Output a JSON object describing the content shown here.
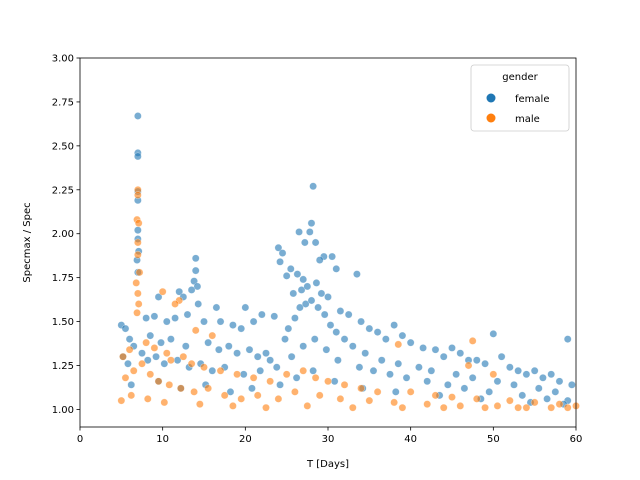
{
  "chart_data": {
    "type": "scatter",
    "title": "",
    "xlabel": "T [Days]",
    "ylabel": "Specmax / Spec",
    "xlim": [
      0,
      60
    ],
    "ylim": [
      0.9,
      3.0
    ],
    "xticks": [
      "0",
      "10",
      "20",
      "30",
      "40",
      "50",
      "60"
    ],
    "yticks": [
      "1.00",
      "1.25",
      "1.50",
      "1.75",
      "2.00",
      "2.25",
      "2.50",
      "2.75",
      "3.00"
    ],
    "grid": false,
    "legend": {
      "title": "gender",
      "placement": "top-right",
      "entries": [
        "female",
        "male"
      ]
    },
    "series": [
      {
        "name": "female",
        "color": "#1f77b4",
        "points": [
          [
            7.0,
            2.67
          ],
          [
            7.0,
            2.46
          ],
          [
            7.0,
            2.44
          ],
          [
            7.0,
            2.24
          ],
          [
            7.0,
            2.19
          ],
          [
            7.0,
            2.02
          ],
          [
            7.0,
            1.97
          ],
          [
            7.1,
            1.9
          ],
          [
            6.9,
            1.85
          ],
          [
            7.0,
            1.78
          ],
          [
            28.2,
            2.27
          ],
          [
            28.0,
            2.06
          ],
          [
            27.8,
            2.01
          ],
          [
            26.5,
            2.01
          ],
          [
            28.5,
            1.95
          ],
          [
            29.5,
            1.87
          ],
          [
            30.5,
            1.87
          ],
          [
            27.2,
            1.95
          ],
          [
            24.0,
            1.92
          ],
          [
            24.5,
            1.89
          ],
          [
            29.0,
            1.85
          ],
          [
            33.5,
            1.77
          ],
          [
            31.0,
            1.8
          ],
          [
            25.5,
            1.8
          ],
          [
            26.3,
            1.77
          ],
          [
            25.0,
            1.76
          ],
          [
            24.2,
            1.84
          ],
          [
            27.0,
            1.74
          ],
          [
            28.6,
            1.72
          ],
          [
            14.0,
            1.86
          ],
          [
            14.0,
            1.79
          ],
          [
            13.8,
            1.73
          ],
          [
            14.2,
            1.7
          ],
          [
            13.5,
            1.68
          ],
          [
            12.0,
            1.67
          ],
          [
            12.5,
            1.64
          ],
          [
            9.5,
            1.64
          ],
          [
            14.3,
            1.6
          ],
          [
            16.5,
            1.58
          ],
          [
            20.0,
            1.58
          ],
          [
            22.0,
            1.54
          ],
          [
            23.5,
            1.53
          ],
          [
            38.0,
            1.48
          ],
          [
            36.0,
            1.44
          ],
          [
            50.0,
            1.43
          ],
          [
            59.0,
            1.4
          ],
          [
            45.0,
            1.35
          ],
          [
            41.5,
            1.35
          ],
          [
            51.0,
            1.3
          ],
          [
            47.0,
            1.28
          ],
          [
            55.0,
            1.22
          ],
          [
            57.0,
            1.2
          ],
          [
            5.0,
            1.48
          ],
          [
            5.5,
            1.46
          ],
          [
            8.0,
            1.52
          ],
          [
            9.0,
            1.53
          ],
          [
            10.5,
            1.5
          ],
          [
            11.5,
            1.52
          ],
          [
            13.0,
            1.54
          ],
          [
            15.0,
            1.5
          ],
          [
            17.0,
            1.5
          ],
          [
            18.5,
            1.48
          ],
          [
            19.5,
            1.46
          ],
          [
            21.0,
            1.5
          ],
          [
            25.8,
            1.66
          ],
          [
            26.8,
            1.68
          ],
          [
            27.5,
            1.7
          ],
          [
            29.2,
            1.66
          ],
          [
            30.0,
            1.64
          ],
          [
            31.5,
            1.56
          ],
          [
            32.5,
            1.54
          ],
          [
            34.0,
            1.5
          ],
          [
            35.0,
            1.46
          ],
          [
            37.0,
            1.4
          ],
          [
            39.0,
            1.42
          ],
          [
            40.0,
            1.38
          ],
          [
            43.0,
            1.34
          ],
          [
            44.0,
            1.3
          ],
          [
            46.0,
            1.32
          ],
          [
            48.0,
            1.28
          ],
          [
            49.0,
            1.26
          ],
          [
            52.0,
            1.24
          ],
          [
            53.0,
            1.22
          ],
          [
            54.0,
            1.2
          ],
          [
            56.0,
            1.18
          ],
          [
            58.0,
            1.16
          ],
          [
            59.5,
            1.14
          ],
          [
            6.0,
            1.4
          ],
          [
            6.5,
            1.36
          ],
          [
            8.5,
            1.42
          ],
          [
            9.8,
            1.38
          ],
          [
            11.0,
            1.4
          ],
          [
            12.8,
            1.36
          ],
          [
            15.5,
            1.38
          ],
          [
            16.8,
            1.34
          ],
          [
            18.0,
            1.36
          ],
          [
            19.0,
            1.32
          ],
          [
            20.5,
            1.34
          ],
          [
            21.5,
            1.3
          ],
          [
            22.5,
            1.32
          ],
          [
            23.0,
            1.28
          ],
          [
            24.8,
            1.4
          ],
          [
            25.2,
            1.46
          ],
          [
            26.0,
            1.52
          ],
          [
            26.6,
            1.58
          ],
          [
            27.3,
            1.6
          ],
          [
            28.0,
            1.62
          ],
          [
            28.8,
            1.58
          ],
          [
            29.6,
            1.54
          ],
          [
            30.3,
            1.48
          ],
          [
            31.0,
            1.44
          ],
          [
            32.0,
            1.4
          ],
          [
            33.0,
            1.36
          ],
          [
            34.5,
            1.32
          ],
          [
            36.5,
            1.28
          ],
          [
            38.5,
            1.26
          ],
          [
            41.0,
            1.24
          ],
          [
            42.5,
            1.22
          ],
          [
            45.5,
            1.2
          ],
          [
            47.5,
            1.18
          ],
          [
            50.5,
            1.16
          ],
          [
            52.5,
            1.14
          ],
          [
            55.5,
            1.12
          ],
          [
            57.5,
            1.1
          ],
          [
            5.2,
            1.3
          ],
          [
            5.8,
            1.26
          ],
          [
            7.5,
            1.32
          ],
          [
            8.2,
            1.28
          ],
          [
            9.2,
            1.3
          ],
          [
            10.2,
            1.26
          ],
          [
            11.8,
            1.28
          ],
          [
            13.2,
            1.24
          ],
          [
            14.6,
            1.26
          ],
          [
            16.0,
            1.22
          ],
          [
            17.5,
            1.24
          ],
          [
            19.8,
            1.2
          ],
          [
            21.8,
            1.22
          ],
          [
            23.8,
            1.24
          ],
          [
            25.6,
            1.3
          ],
          [
            27.0,
            1.36
          ],
          [
            28.4,
            1.4
          ],
          [
            29.8,
            1.34
          ],
          [
            31.2,
            1.28
          ],
          [
            33.8,
            1.24
          ],
          [
            35.5,
            1.22
          ],
          [
            37.5,
            1.2
          ],
          [
            39.5,
            1.18
          ],
          [
            42.0,
            1.16
          ],
          [
            44.5,
            1.14
          ],
          [
            46.5,
            1.12
          ],
          [
            49.5,
            1.1
          ],
          [
            53.5,
            1.08
          ],
          [
            56.5,
            1.06
          ],
          [
            59.0,
            1.05
          ],
          [
            6.2,
            1.14
          ],
          [
            9.5,
            1.16
          ],
          [
            12.2,
            1.12
          ],
          [
            15.2,
            1.14
          ],
          [
            18.2,
            1.1
          ],
          [
            20.8,
            1.12
          ],
          [
            24.2,
            1.14
          ],
          [
            26.2,
            1.18
          ],
          [
            28.2,
            1.22
          ],
          [
            30.8,
            1.16
          ],
          [
            34.2,
            1.12
          ],
          [
            38.2,
            1.1
          ],
          [
            43.5,
            1.08
          ],
          [
            48.5,
            1.06
          ],
          [
            54.5,
            1.04
          ],
          [
            58.5,
            1.03
          ]
        ]
      },
      {
        "name": "male",
        "color": "#ff7f0e",
        "points": [
          [
            7.0,
            2.25
          ],
          [
            7.0,
            2.22
          ],
          [
            6.9,
            2.08
          ],
          [
            7.1,
            2.06
          ],
          [
            7.0,
            1.95
          ],
          [
            7.0,
            1.88
          ],
          [
            7.2,
            1.78
          ],
          [
            6.8,
            1.72
          ],
          [
            7.0,
            1.66
          ],
          [
            7.1,
            1.6
          ],
          [
            6.9,
            1.55
          ],
          [
            10.0,
            1.67
          ],
          [
            12.0,
            1.62
          ],
          [
            11.5,
            1.6
          ],
          [
            14.0,
            1.45
          ],
          [
            16.0,
            1.42
          ],
          [
            38.5,
            1.37
          ],
          [
            47.5,
            1.39
          ],
          [
            47.0,
            1.25
          ],
          [
            50.0,
            1.2
          ],
          [
            5.2,
            1.3
          ],
          [
            6.0,
            1.34
          ],
          [
            8.0,
            1.38
          ],
          [
            9.0,
            1.35
          ],
          [
            10.5,
            1.32
          ],
          [
            11.0,
            1.28
          ],
          [
            12.5,
            1.3
          ],
          [
            13.5,
            1.26
          ],
          [
            15.0,
            1.24
          ],
          [
            17.0,
            1.22
          ],
          [
            19.0,
            1.2
          ],
          [
            21.0,
            1.18
          ],
          [
            23.0,
            1.16
          ],
          [
            25.0,
            1.2
          ],
          [
            27.0,
            1.22
          ],
          [
            28.5,
            1.18
          ],
          [
            30.0,
            1.16
          ],
          [
            32.0,
            1.14
          ],
          [
            34.0,
            1.12
          ],
          [
            36.0,
            1.1
          ],
          [
            40.0,
            1.1
          ],
          [
            43.0,
            1.08
          ],
          [
            45.0,
            1.07
          ],
          [
            48.0,
            1.06
          ],
          [
            52.0,
            1.05
          ],
          [
            55.0,
            1.04
          ],
          [
            58.0,
            1.03
          ],
          [
            60.0,
            1.02
          ],
          [
            5.5,
            1.18
          ],
          [
            6.5,
            1.22
          ],
          [
            7.5,
            1.26
          ],
          [
            8.5,
            1.2
          ],
          [
            9.5,
            1.16
          ],
          [
            10.8,
            1.14
          ],
          [
            12.2,
            1.12
          ],
          [
            13.8,
            1.1
          ],
          [
            15.5,
            1.12
          ],
          [
            17.5,
            1.08
          ],
          [
            19.5,
            1.06
          ],
          [
            21.5,
            1.08
          ],
          [
            24.0,
            1.06
          ],
          [
            26.0,
            1.1
          ],
          [
            29.0,
            1.08
          ],
          [
            31.5,
            1.06
          ],
          [
            35.0,
            1.05
          ],
          [
            38.0,
            1.04
          ],
          [
            42.0,
            1.03
          ],
          [
            46.0,
            1.02
          ],
          [
            50.5,
            1.02
          ],
          [
            54.0,
            1.01
          ],
          [
            57.0,
            1.01
          ],
          [
            5.0,
            1.05
          ],
          [
            6.2,
            1.08
          ],
          [
            8.2,
            1.06
          ],
          [
            10.2,
            1.04
          ],
          [
            14.5,
            1.03
          ],
          [
            18.5,
            1.02
          ],
          [
            22.5,
            1.01
          ],
          [
            27.5,
            1.02
          ],
          [
            33.0,
            1.01
          ],
          [
            39.0,
            1.01
          ],
          [
            44.0,
            1.01
          ],
          [
            49.0,
            1.01
          ],
          [
            53.0,
            1.01
          ],
          [
            59.0,
            1.01
          ]
        ]
      }
    ]
  }
}
